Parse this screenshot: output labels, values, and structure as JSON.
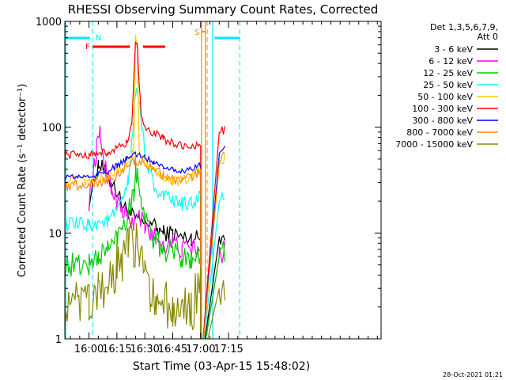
{
  "chart_data": {
    "type": "line",
    "title": "RHESSI Observing Summary Count Rates, Corrected",
    "xlabel": "Start Time (03-Apr-15 15:48:02)",
    "ylabel": "Corrected Count Rate (s⁻¹ detector⁻¹)",
    "yscale": "log",
    "ylim": [
      1,
      1000
    ],
    "xlim_min": [
      -13,
      157
    ],
    "y_ticks": [
      {
        "v": 1,
        "label": "1"
      },
      {
        "v": 10,
        "label": "10"
      },
      {
        "v": 100,
        "label": "100"
      },
      {
        "v": 1000,
        "label": "1000"
      }
    ],
    "x_ticks": [
      {
        "v": 0,
        "label": "16:00"
      },
      {
        "v": 15,
        "label": "16:15"
      },
      {
        "v": 30,
        "label": "16:30"
      },
      {
        "v": 45,
        "label": "16:45"
      },
      {
        "v": 60,
        "label": "17:00"
      },
      {
        "v": 75,
        "label": "17:15"
      }
    ],
    "legend_header": [
      "Det 1,3,5,6,7,9,",
      "Att 0"
    ],
    "series": [
      {
        "name": "3 - 6 keV",
        "color": "#000000",
        "points": [
          [
            0,
            20
          ],
          [
            5,
            45
          ],
          [
            9,
            38
          ],
          [
            12,
            30
          ],
          [
            15,
            25
          ],
          [
            18,
            18
          ],
          [
            21,
            16
          ],
          [
            24,
            14
          ],
          [
            27,
            13
          ],
          [
            30,
            12
          ],
          [
            33,
            13
          ],
          [
            36,
            11
          ],
          [
            40,
            10
          ],
          [
            45,
            10
          ],
          [
            50,
            9
          ],
          [
            55,
            9
          ],
          [
            60,
            9
          ],
          [
            60,
            0.5
          ],
          [
            70,
            9
          ],
          [
            73,
            10
          ]
        ],
        "amp": 0.08
      },
      {
        "name": "6 - 12 keV",
        "color": "#ff00ff",
        "points": [
          [
            0,
            20
          ],
          [
            4,
            60
          ],
          [
            6,
            85
          ],
          [
            9,
            40
          ],
          [
            12,
            28
          ],
          [
            15,
            20
          ],
          [
            18,
            16
          ],
          [
            21,
            14
          ],
          [
            24,
            12
          ],
          [
            27,
            15
          ],
          [
            30,
            11
          ],
          [
            33,
            10
          ],
          [
            36,
            9
          ],
          [
            40,
            8
          ],
          [
            45,
            8
          ],
          [
            50,
            7
          ],
          [
            55,
            7
          ],
          [
            60,
            7
          ],
          [
            60,
            0.5
          ],
          [
            70,
            6
          ],
          [
            73,
            7
          ]
        ],
        "amp": 0.1
      },
      {
        "name": "12 - 25 keV",
        "color": "#00cc00",
        "points": [
          [
            -13,
            5
          ],
          [
            0,
            5
          ],
          [
            5,
            6
          ],
          [
            10,
            7
          ],
          [
            15,
            9
          ],
          [
            18,
            12
          ],
          [
            21,
            16
          ],
          [
            24,
            25
          ],
          [
            25,
            40
          ],
          [
            26,
            35
          ],
          [
            28,
            22
          ],
          [
            30,
            14
          ],
          [
            33,
            10
          ],
          [
            36,
            8
          ],
          [
            40,
            7
          ],
          [
            45,
            6.5
          ],
          [
            50,
            6
          ],
          [
            55,
            6
          ],
          [
            60,
            6.5
          ],
          [
            60,
            0.5
          ],
          [
            70,
            6
          ],
          [
            73,
            7
          ]
        ],
        "amp": 0.12
      },
      {
        "name": "25 - 50 keV",
        "color": "#00ffff",
        "points": [
          [
            -13,
            12
          ],
          [
            0,
            12
          ],
          [
            10,
            13
          ],
          [
            15,
            16
          ],
          [
            18,
            20
          ],
          [
            21,
            30
          ],
          [
            23,
            70
          ],
          [
            25,
            210
          ],
          [
            26,
            220
          ],
          [
            28,
            120
          ],
          [
            30,
            60
          ],
          [
            32,
            40
          ],
          [
            35,
            28
          ],
          [
            40,
            22
          ],
          [
            45,
            20
          ],
          [
            50,
            19
          ],
          [
            55,
            19
          ],
          [
            60,
            22
          ],
          [
            60,
            0.5
          ],
          [
            70,
            20
          ],
          [
            73,
            22
          ]
        ],
        "amp": 0.07
      },
      {
        "name": "50 - 100 keV",
        "color": "#ffcc00",
        "points": [
          [
            -13,
            31
          ],
          [
            0,
            31
          ],
          [
            10,
            34
          ],
          [
            15,
            38
          ],
          [
            20,
            44
          ],
          [
            24,
            60
          ],
          [
            25,
            700
          ],
          [
            26,
            560
          ],
          [
            27,
            60
          ],
          [
            30,
            46
          ],
          [
            35,
            40
          ],
          [
            40,
            35
          ],
          [
            45,
            31
          ],
          [
            50,
            31
          ],
          [
            55,
            33
          ],
          [
            60,
            42
          ],
          [
            60,
            0.5
          ],
          [
            70,
            45
          ],
          [
            73,
            50
          ]
        ],
        "amp": 0.05
      },
      {
        "name": "100 - 300 keV",
        "color": "#ff0000",
        "points": [
          [
            -13,
            55
          ],
          [
            0,
            55
          ],
          [
            10,
            58
          ],
          [
            15,
            62
          ],
          [
            20,
            70
          ],
          [
            23,
            100
          ],
          [
            24,
            280
          ],
          [
            25,
            680
          ],
          [
            26,
            600
          ],
          [
            27,
            260
          ],
          [
            28,
            130
          ],
          [
            30,
            95
          ],
          [
            35,
            88
          ],
          [
            40,
            78
          ],
          [
            45,
            70
          ],
          [
            50,
            66
          ],
          [
            55,
            64
          ],
          [
            60,
            72
          ],
          [
            60,
            0.5
          ],
          [
            70,
            90
          ],
          [
            73,
            95
          ]
        ],
        "amp": 0.04
      },
      {
        "name": "300 - 800 keV",
        "color": "#0000ff",
        "points": [
          [
            -13,
            34
          ],
          [
            0,
            34
          ],
          [
            10,
            38
          ],
          [
            15,
            43
          ],
          [
            20,
            50
          ],
          [
            25,
            56
          ],
          [
            30,
            52
          ],
          [
            35,
            47
          ],
          [
            40,
            43
          ],
          [
            45,
            40
          ],
          [
            50,
            39
          ],
          [
            55,
            40
          ],
          [
            60,
            44
          ],
          [
            60,
            0.5
          ],
          [
            70,
            55
          ],
          [
            73,
            65
          ]
        ],
        "amp": 0.03
      },
      {
        "name": "800 - 7000 keV",
        "color": "#ff8800",
        "points": [
          [
            -13,
            28
          ],
          [
            0,
            29
          ],
          [
            10,
            32
          ],
          [
            15,
            35
          ],
          [
            20,
            43
          ],
          [
            25,
            50
          ],
          [
            30,
            45
          ],
          [
            35,
            40
          ],
          [
            40,
            35
          ],
          [
            45,
            32
          ],
          [
            50,
            32
          ],
          [
            55,
            33
          ],
          [
            60,
            38
          ],
          [
            60,
            0.5
          ],
          [
            70,
            45
          ],
          [
            73,
            55
          ]
        ],
        "amp": 0.05
      },
      {
        "name": "7000 - 15000 keV",
        "color": "#888800",
        "points": [
          [
            -13,
            2
          ],
          [
            0,
            2
          ],
          [
            5,
            2.5
          ],
          [
            10,
            3
          ],
          [
            15,
            5
          ],
          [
            18,
            6
          ],
          [
            21,
            7
          ],
          [
            24,
            7.5
          ],
          [
            27,
            7.5
          ],
          [
            30,
            6
          ],
          [
            33,
            3
          ],
          [
            36,
            2
          ],
          [
            45,
            2
          ],
          [
            55,
            2
          ],
          [
            60,
            3
          ],
          [
            60,
            0.5
          ],
          [
            70,
            3
          ],
          [
            73,
            4
          ]
        ],
        "amp": 0.25
      }
    ],
    "flags": [
      {
        "label": "N",
        "color": "#00e5ff"
      },
      {
        "label": "F",
        "color": "#ff0000"
      },
      {
        "label": "S",
        "color": "#ff8800"
      }
    ],
    "timestamp": "28-Oct-2021 01:21"
  }
}
